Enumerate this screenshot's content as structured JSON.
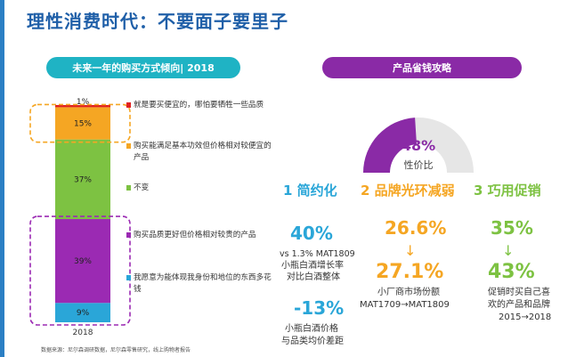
{
  "title": "理性消费时代：不要面子要里子",
  "left_panel": {
    "header": "未来一年的购买方式倾向| 2018",
    "footnote": "数据来源：尼尔森调研数据，尼尔森零售研究，线上购物者报告"
  },
  "chart_data": {
    "type": "bar",
    "stacked": true,
    "categories": [
      "2018"
    ],
    "series": [
      {
        "name": "我愿意为能体现我身份和地位的东西多花钱",
        "values": [
          9
        ],
        "label": "9%",
        "color": "#2aa6d8"
      },
      {
        "name": "购买品质更好但价格相对较贵的产品",
        "values": [
          39
        ],
        "label": "39%",
        "color": "#9b2ab3"
      },
      {
        "name": "不变",
        "values": [
          37
        ],
        "label": "37%",
        "color": "#7dc242"
      },
      {
        "name": "购买能满足基本功效但价格相对较便宜的产品",
        "values": [
          15
        ],
        "label": "15%",
        "color": "#f5a623"
      },
      {
        "name": "就是要买便宜的，哪怕要牺牲一些品质",
        "values": [
          1
        ],
        "label": "1%",
        "color": "#e02020"
      }
    ],
    "ylim": [
      0,
      101
    ],
    "highlight_groups": [
      {
        "series": [
          "购买能满足基本功效但价格相对较便宜的产品"
        ],
        "color": "#f5a623"
      },
      {
        "series": [
          "我愿意为能体现我身份和地位的东西多花钱",
          "购买品质更好但价格相对较贵的产品"
        ],
        "color": "#9b2ab3"
      }
    ]
  },
  "right_panel": {
    "header": "产品省钱攻略",
    "gauge": {
      "value": 48,
      "label_pct": "48%",
      "label": "性价比",
      "color": "#8a2aa6"
    },
    "tips": [
      {
        "title": "1 简约化",
        "color": "#2aa6d8",
        "stat1": "40%",
        "text1": [
          "vs 1.3% MAT1809",
          "小瓶白酒增长率",
          "对比白酒整体"
        ],
        "stat2": "-13%",
        "text2": [
          "小瓶白酒价格",
          "与品类均价差距"
        ]
      },
      {
        "title": "2 品牌光环减弱",
        "color": "#f5a623",
        "stat1": "26.6%",
        "stat2": "27.1%",
        "text2": [
          "小厂商市场份额",
          "MAT1709→MAT1809"
        ]
      },
      {
        "title": "3 巧用促销",
        "color": "#7dc242",
        "stat1": "35%",
        "stat2": "43%",
        "text2": [
          "促销时买自己喜",
          "欢的产品和品牌",
          "2015→2018"
        ]
      }
    ]
  }
}
